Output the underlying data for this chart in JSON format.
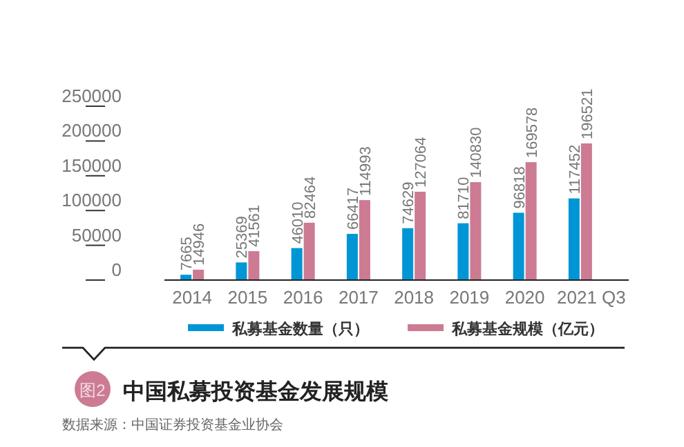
{
  "chart_data": {
    "type": "bar",
    "title": "中国私募投资基金发展规模",
    "categories": [
      "2014",
      "2015",
      "2016",
      "2017",
      "2018",
      "2019",
      "2020",
      "2021 Q3"
    ],
    "series": [
      {
        "name": "私募基金数量（只）",
        "color": "#0096d6",
        "values": [
          7665,
          25369,
          46010,
          66417,
          74629,
          81710,
          96818,
          117452
        ]
      },
      {
        "name": "私募基金规模（亿元）",
        "color": "#cc7b93",
        "values": [
          14946,
          41561,
          82464,
          114993,
          127064,
          140830,
          169578,
          196521
        ]
      }
    ],
    "ylim": [
      0,
      250000
    ],
    "yticks": [
      0,
      50000,
      100000,
      150000,
      200000,
      250000
    ],
    "data_labels": true,
    "grid": false,
    "legend": "bottom",
    "annotations": [
      "图2",
      "数据来源：中国证券投资基金业协会"
    ]
  }
}
